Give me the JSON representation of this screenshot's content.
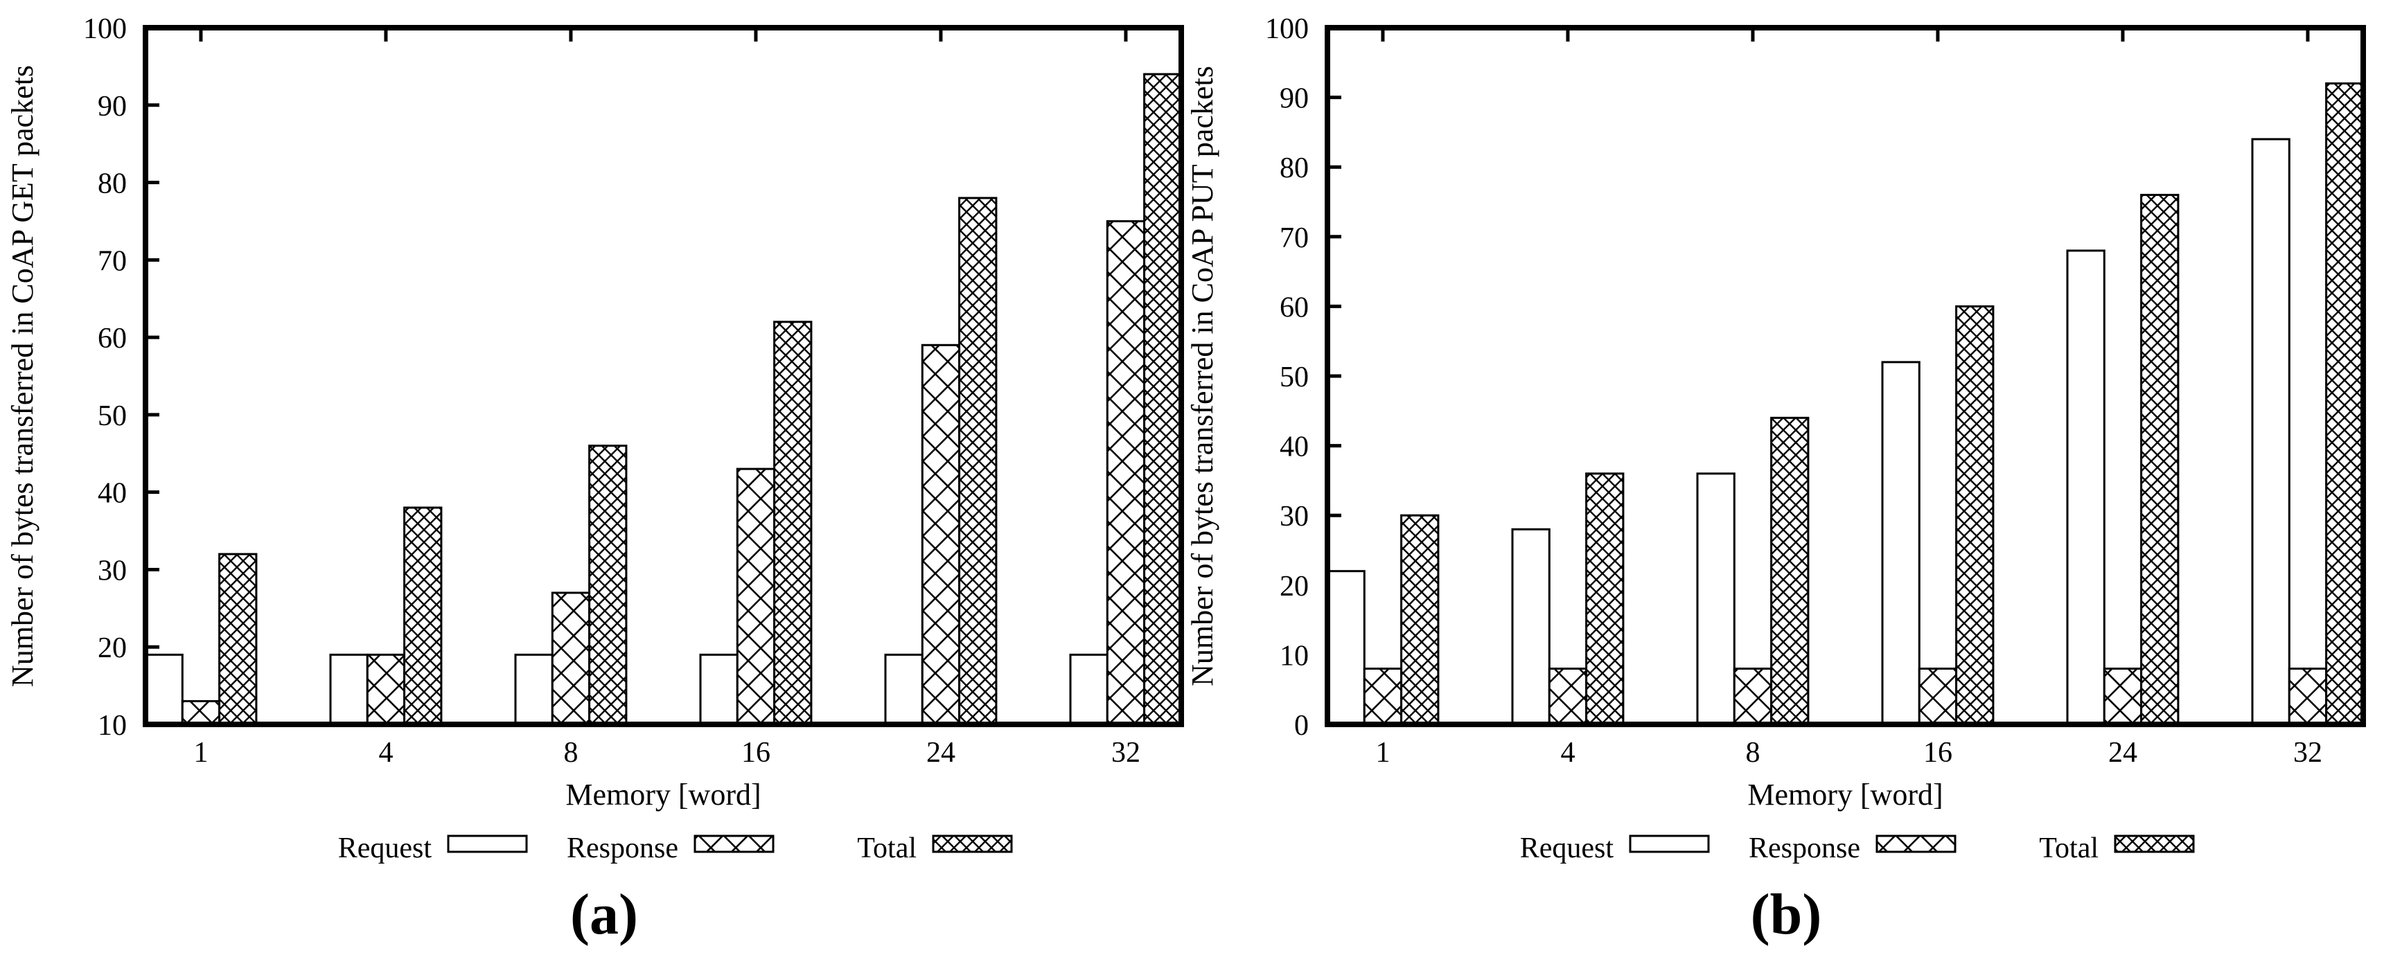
{
  "figure": {
    "background": "#ffffff",
    "ink_color": "#000000",
    "paper_color": "#ffffff"
  },
  "chart_data": [
    {
      "type": "bar",
      "panel_caption": "(a)",
      "title": "",
      "ylabel": "Number of bytes transferred in CoAP GET packets",
      "xlabel": "Memory [word]",
      "categories": [
        "1",
        "4",
        "8",
        "16",
        "24",
        "32"
      ],
      "series": [
        {
          "name": "Request",
          "fill": "plain-white",
          "values": [
            19,
            19,
            19,
            19,
            19,
            19
          ]
        },
        {
          "name": "Response",
          "fill": "crosshatch-coarse",
          "values": [
            13,
            19,
            27,
            43,
            59,
            75
          ]
        },
        {
          "name": "Total",
          "fill": "crosshatch-fine",
          "values": [
            32,
            38,
            46,
            62,
            78,
            94
          ]
        }
      ],
      "ylim": [
        10,
        100
      ],
      "ytick_step": 10,
      "ytick_labels": [
        "10",
        "20",
        "30",
        "40",
        "50",
        "60",
        "70",
        "80",
        "90",
        "100"
      ],
      "grid": false,
      "legend_position": "below-center"
    },
    {
      "type": "bar",
      "panel_caption": "(b)",
      "title": "",
      "ylabel": "Number of bytes transferred in CoAP PUT packets",
      "xlabel": "Memory [word]",
      "categories": [
        "1",
        "4",
        "8",
        "16",
        "24",
        "32"
      ],
      "series": [
        {
          "name": "Request",
          "fill": "plain-white",
          "values": [
            22,
            28,
            36,
            52,
            68,
            84
          ]
        },
        {
          "name": "Response",
          "fill": "crosshatch-coarse",
          "values": [
            8,
            8,
            8,
            8,
            8,
            8
          ]
        },
        {
          "name": "Total",
          "fill": "crosshatch-fine",
          "values": [
            30,
            36,
            44,
            60,
            76,
            92
          ]
        }
      ],
      "ylim": [
        0,
        100
      ],
      "ytick_step": 10,
      "ytick_labels": [
        "0",
        "10",
        "20",
        "30",
        "40",
        "50",
        "60",
        "70",
        "80",
        "90",
        "100"
      ],
      "grid": false,
      "legend_position": "below-center"
    }
  ]
}
